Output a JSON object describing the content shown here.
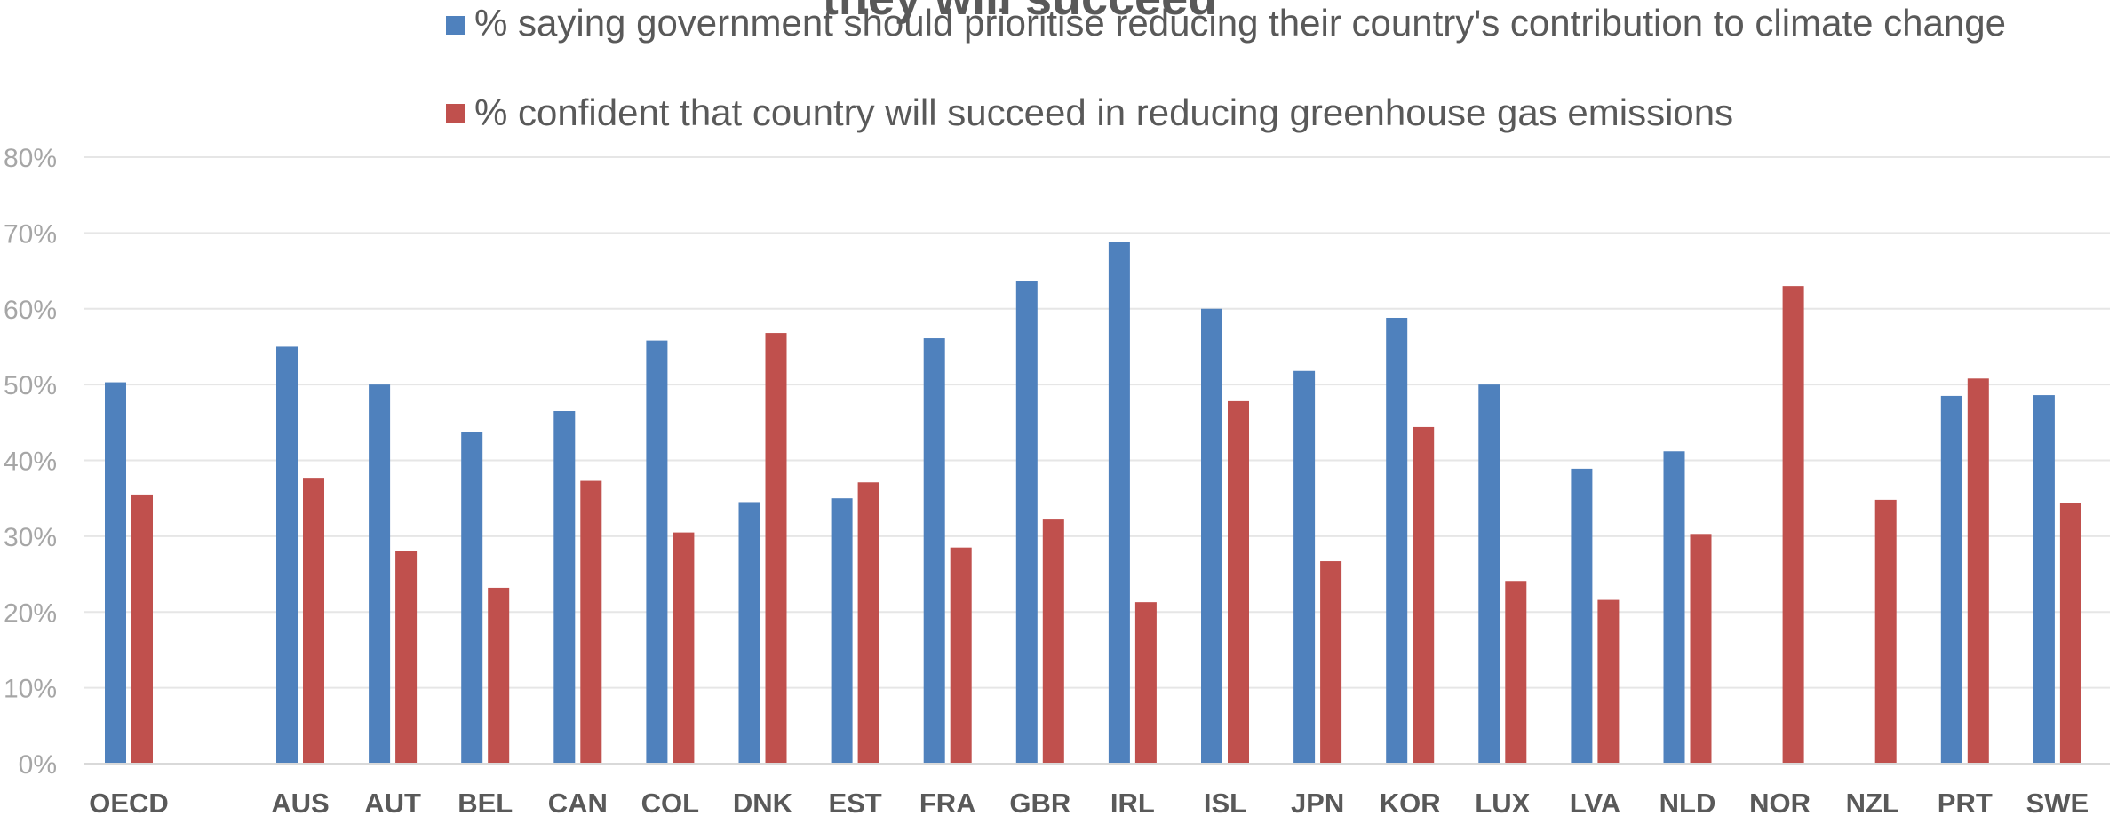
{
  "chart_data": {
    "type": "bar",
    "title": "they will succeed",
    "categories": [
      "OECD",
      "AUS",
      "AUT",
      "BEL",
      "CAN",
      "COL",
      "DNK",
      "EST",
      "FRA",
      "GBR",
      "IRL",
      "ISL",
      "JPN",
      "KOR",
      "LUX",
      "LVA",
      "NLD",
      "NOR",
      "NZL",
      "PRT",
      "SWE"
    ],
    "series": [
      {
        "name": "% saying government should prioritise reducing their country's contribution to  climate change",
        "color": "#4f81bd",
        "values": [
          50.3,
          55.0,
          50.0,
          43.8,
          46.5,
          55.8,
          34.5,
          35.0,
          56.1,
          63.6,
          68.8,
          60.0,
          51.8,
          58.8,
          50.0,
          38.9,
          41.2,
          null,
          null,
          48.5,
          48.6
        ]
      },
      {
        "name": "% confident that country will succeed in reducing greenhouse gas emissions",
        "color": "#c0504d",
        "values": [
          35.5,
          37.7,
          28.0,
          23.2,
          37.3,
          30.5,
          56.8,
          37.1,
          28.5,
          32.2,
          21.3,
          47.8,
          26.7,
          44.4,
          24.1,
          21.6,
          30.3,
          63.0,
          34.8,
          50.8,
          34.4
        ]
      }
    ],
    "yticks": [
      "0%",
      "10%",
      "20%",
      "30%",
      "40%",
      "50%",
      "60%",
      "70%",
      "80%"
    ],
    "ylim": [
      0,
      80
    ],
    "grid": true,
    "legend_position": "top"
  }
}
